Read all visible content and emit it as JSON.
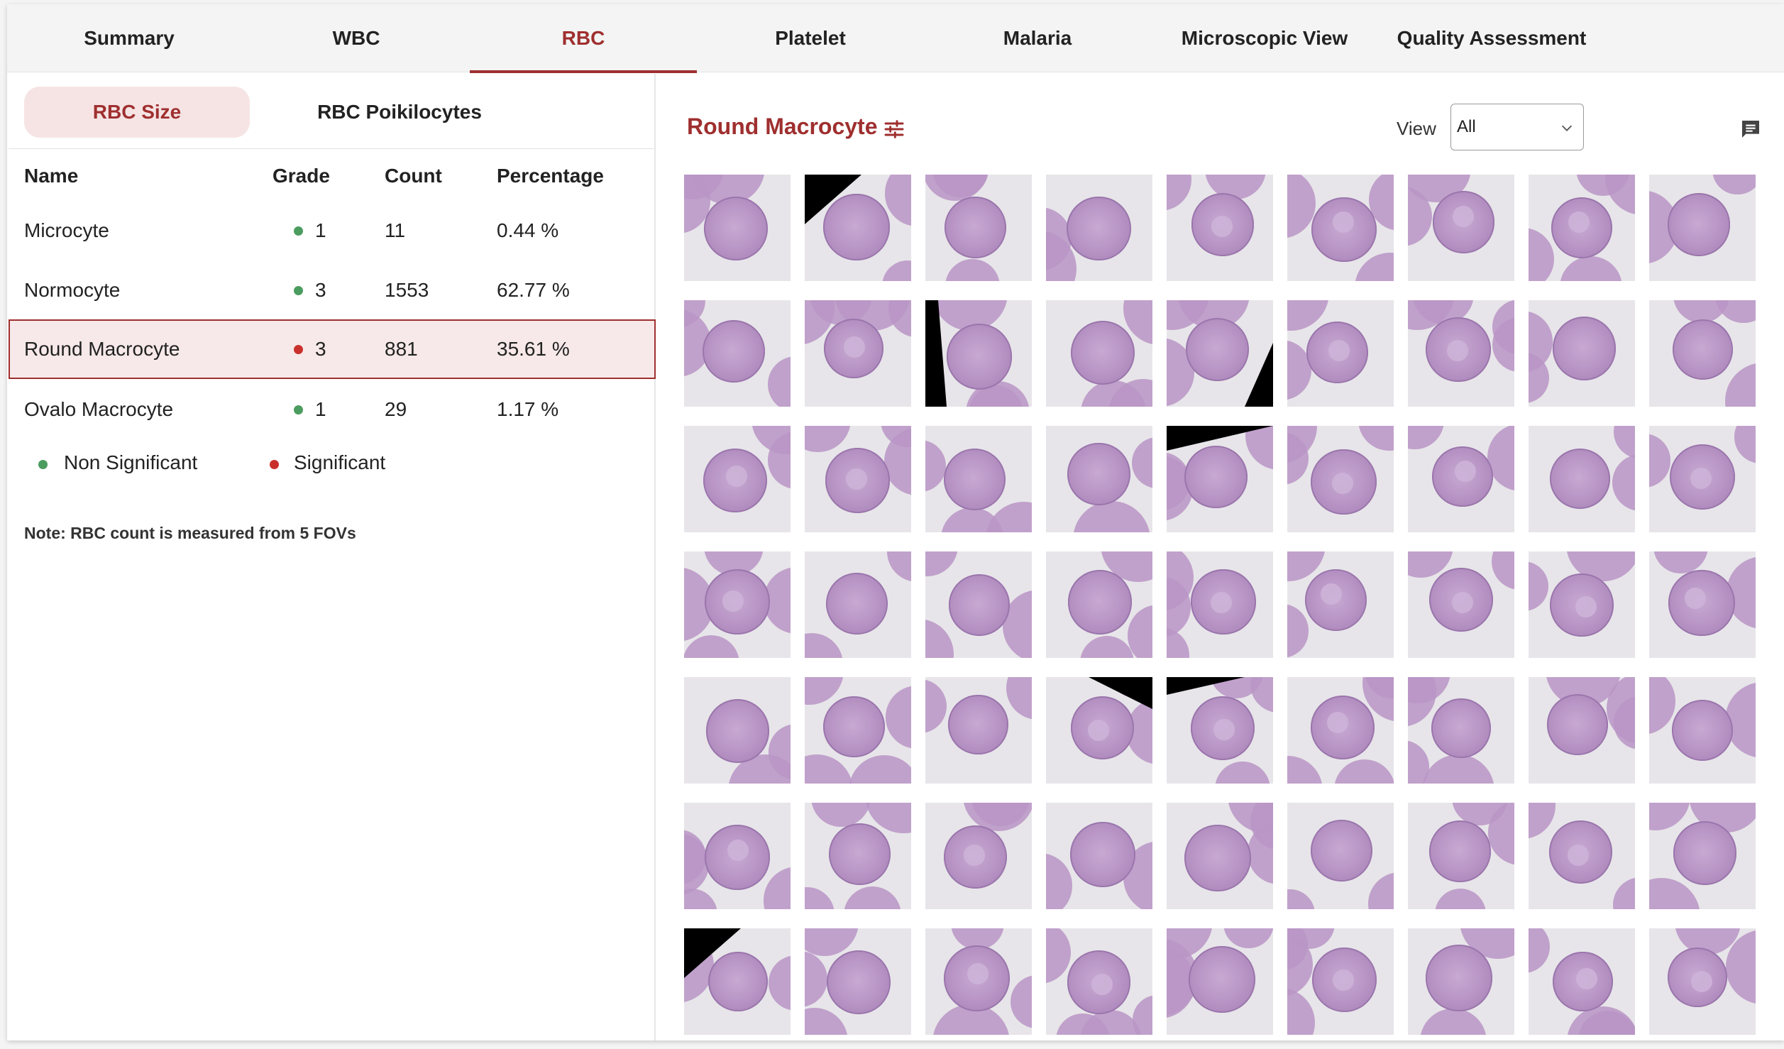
{
  "tabs": [
    {
      "label": "Summary",
      "active": false
    },
    {
      "label": "WBC",
      "active": false
    },
    {
      "label": "RBC",
      "active": true
    },
    {
      "label": "Platelet",
      "active": false
    },
    {
      "label": "Malaria",
      "active": false
    },
    {
      "label": "Microscopic View",
      "active": false
    },
    {
      "label": "Quality Assessment",
      "active": false
    }
  ],
  "subtabs": [
    {
      "label": "RBC Size",
      "active": true
    },
    {
      "label": "RBC Poikilocytes",
      "active": false
    }
  ],
  "table": {
    "headers": {
      "name": "Name",
      "grade": "Grade",
      "count": "Count",
      "percentage": "Percentage"
    },
    "rows": [
      {
        "name": "Microcyte",
        "grade": "1",
        "count": "11",
        "percentage": "0.44 %",
        "significance": "green",
        "selected": false
      },
      {
        "name": "Normocyte",
        "grade": "3",
        "count": "1553",
        "percentage": "62.77 %",
        "significance": "green",
        "selected": false
      },
      {
        "name": "Round Macrocyte",
        "grade": "3",
        "count": "881",
        "percentage": "35.61 %",
        "significance": "red",
        "selected": true
      },
      {
        "name": "Ovalo Macrocyte",
        "grade": "1",
        "count": "29",
        "percentage": "1.17 %",
        "significance": "green",
        "selected": false
      }
    ]
  },
  "legend": {
    "non_significant": "Non Significant",
    "significant": "Significant",
    "green": "#4b9c5f",
    "red": "#c9302c"
  },
  "note": "Note: RBC count is measured from 5 FOVs",
  "gallery": {
    "title": "Round Macrocyte",
    "filter_icon": "tune-icon",
    "view_label": "View",
    "view_value": "All",
    "comment_icon": "comment-icon"
  },
  "colors": {
    "accent": "#9f2f2f",
    "accent_light": "#f6e4e4"
  }
}
